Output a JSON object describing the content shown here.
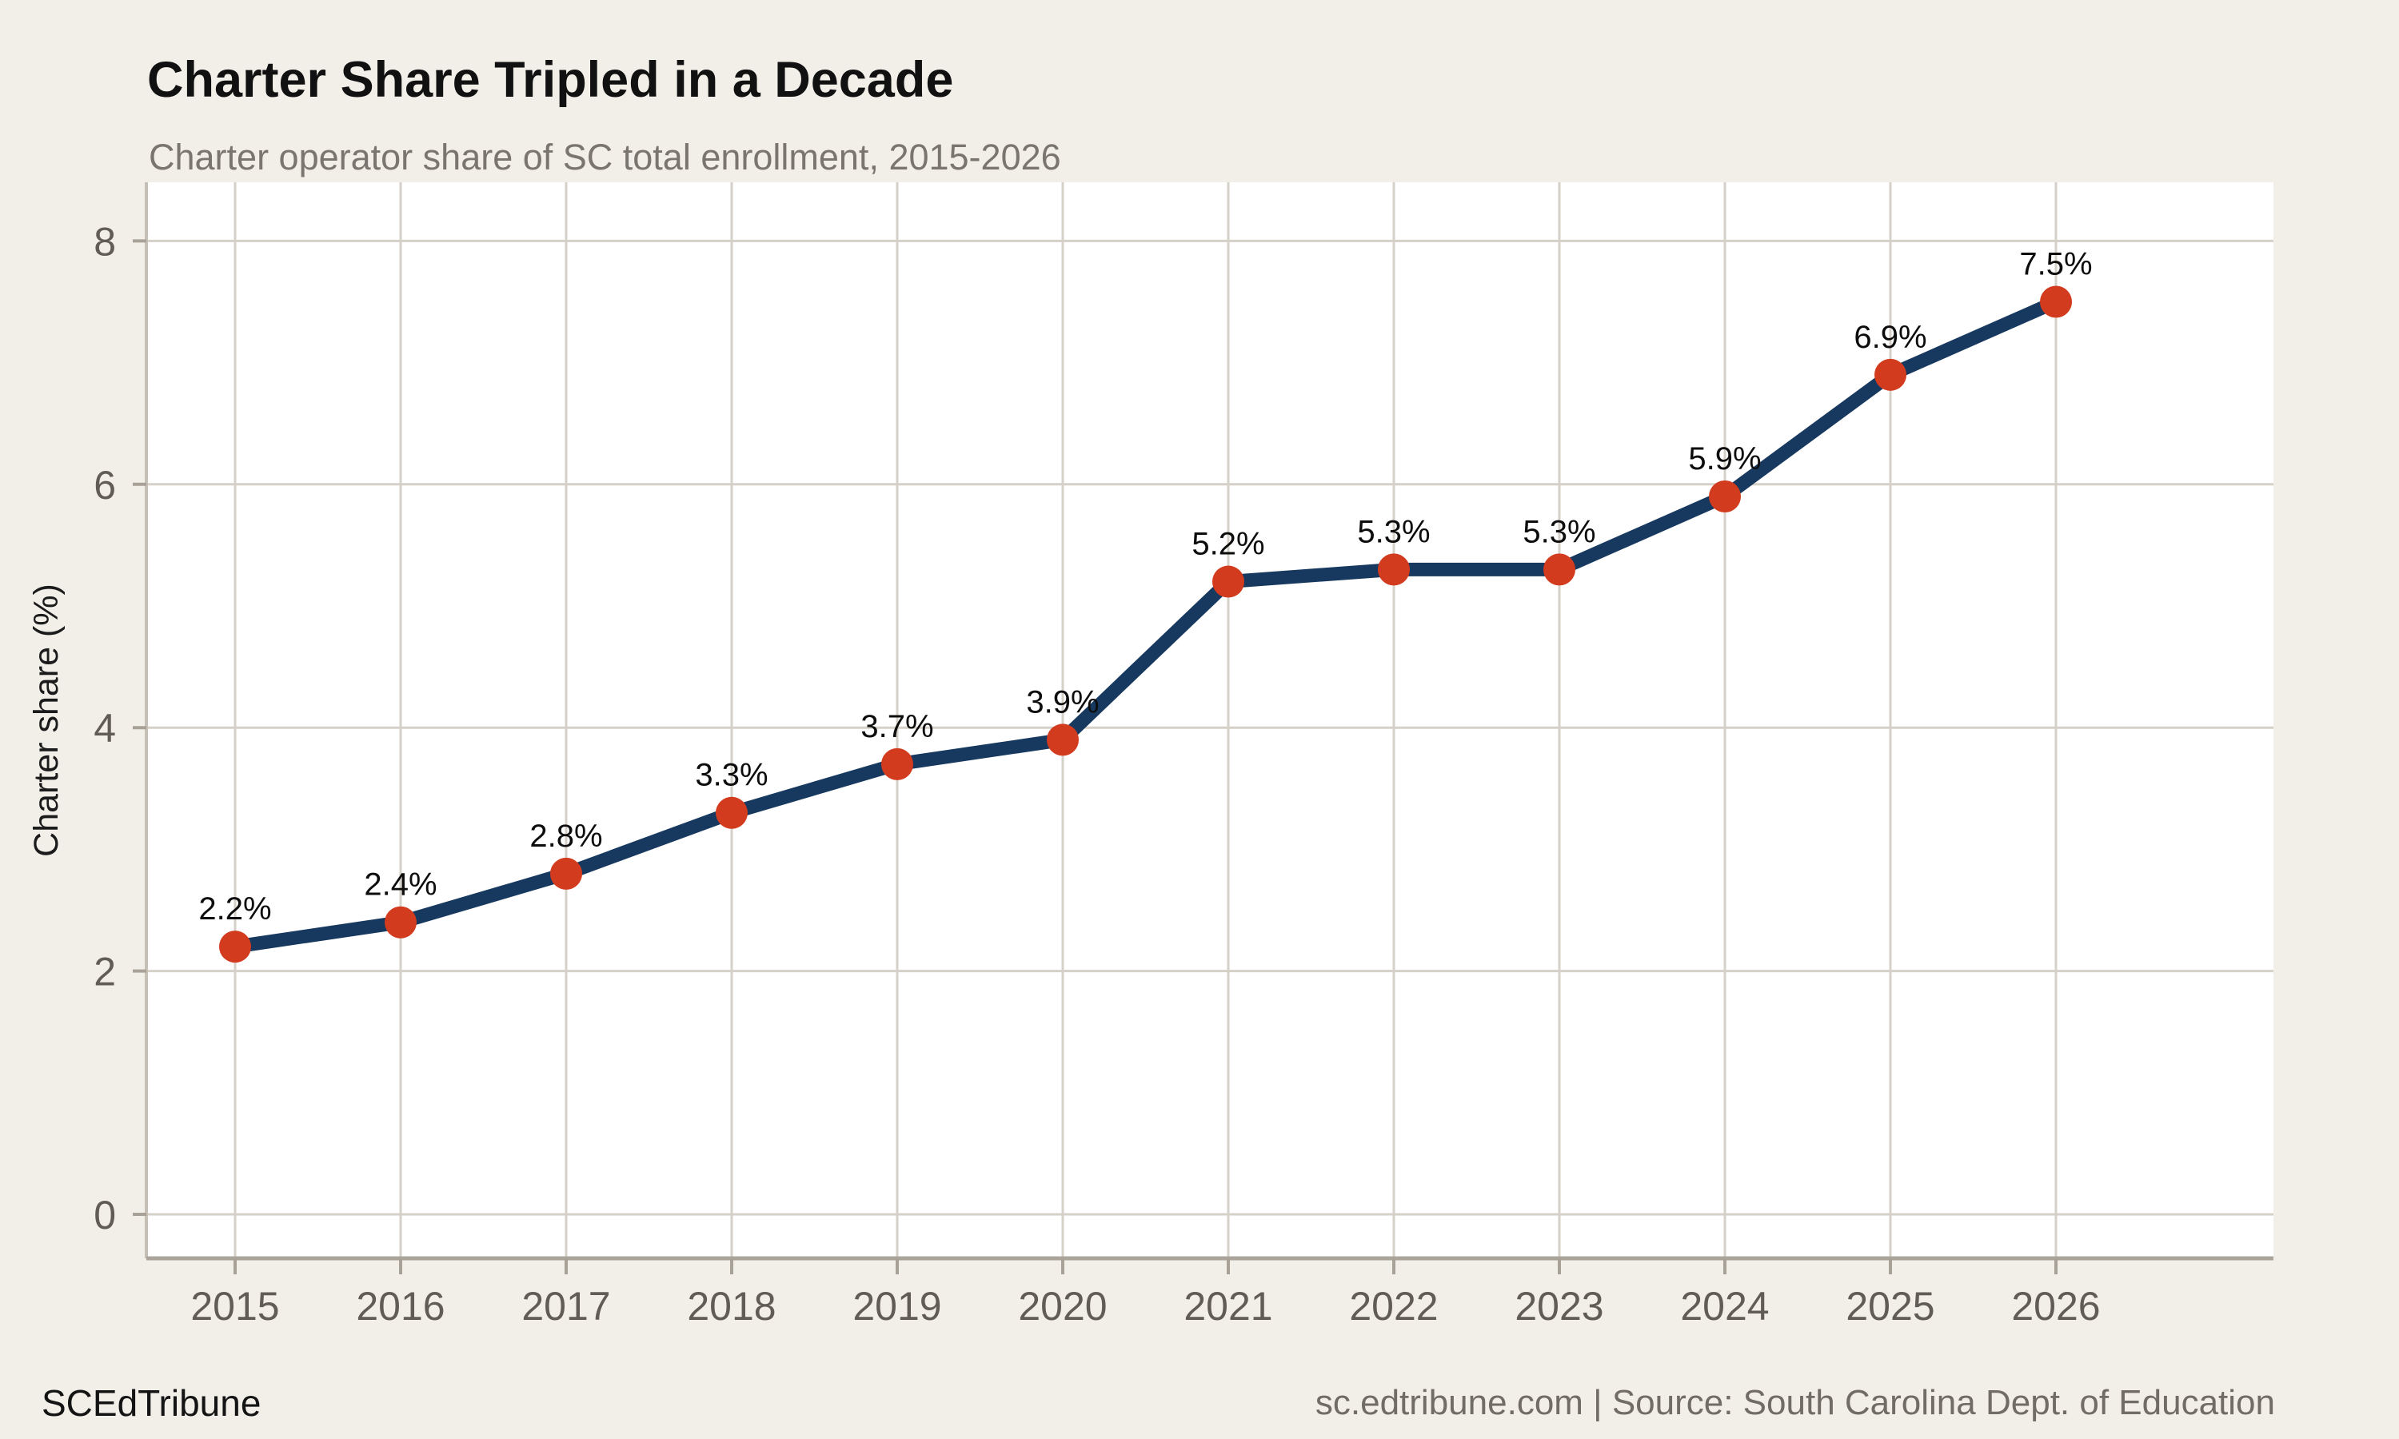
{
  "header": {
    "title": "Charter Share Tripled in a Decade",
    "subtitle": "Charter operator share of SC total enrollment, 2015-2026"
  },
  "footer": {
    "brand": "SCEdTribune",
    "source": "sc.edtribune.com | Source: South Carolina Dept. of Education"
  },
  "colors": {
    "figure_background": "#f2efe9",
    "panel_background": "#ffffff",
    "gridline": "#d5d0c8",
    "y_axis_line": "#c5bfb5",
    "x_axis_line": "#aaa49b",
    "tick_mark": "#a7a198",
    "tick_text": "#615c55",
    "axis_title_text": "#1b1b1b",
    "series_line": "#17395f",
    "point_fill": "#d23b1e",
    "point_label_text": "#0d0d0d"
  },
  "chart_data": {
    "type": "line",
    "title": "Charter Share Tripled in a Decade",
    "subtitle": "Charter operator share of SC total enrollment, 2015-2026",
    "x": [
      2015,
      2016,
      2017,
      2018,
      2019,
      2020,
      2021,
      2022,
      2023,
      2024,
      2025,
      2026
    ],
    "x_tick_labels": [
      "2015",
      "2016",
      "2017",
      "2018",
      "2019",
      "2020",
      "2021",
      "2022",
      "2023",
      "2024",
      "2025",
      "2026"
    ],
    "values": [
      2.2,
      2.4,
      2.8,
      3.3,
      3.7,
      3.9,
      5.2,
      5.3,
      5.3,
      5.9,
      6.9,
      7.5
    ],
    "point_labels": [
      "2.2%",
      "2.4%",
      "2.8%",
      "3.3%",
      "3.7%",
      "3.9%",
      "5.2%",
      "5.3%",
      "5.3%",
      "5.9%",
      "6.9%",
      "7.5%"
    ],
    "xlabel": "",
    "ylabel": "Charter share (%)",
    "yticks": [
      0,
      2,
      4,
      6,
      8
    ],
    "ylim": [
      0,
      8
    ],
    "grid": true,
    "legend": false,
    "series_name": "Charter share"
  }
}
